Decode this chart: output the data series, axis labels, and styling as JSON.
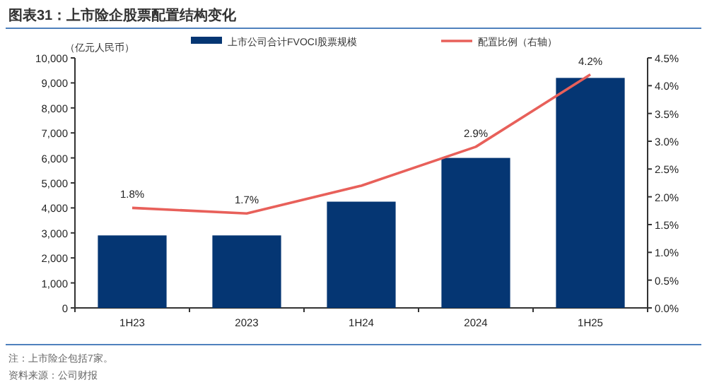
{
  "chart_data": {
    "type": "bar",
    "title": "图表31：上市险企股票配置结构变化",
    "ylabel": "（亿元人民币）",
    "categories": [
      "1H23",
      "2023",
      "1H24",
      "2024",
      "1H25"
    ],
    "series": [
      {
        "name": "上市公司合计FVOCI股票规模",
        "color": "#053673",
        "values": [
          2900,
          2900,
          4250,
          6000,
          9200
        ]
      },
      {
        "name": "配置比例（右轴）",
        "type": "line",
        "axis": "y2",
        "color": "#e8605a",
        "values": [
          1.8,
          1.7,
          2.2,
          2.9,
          4.2
        ],
        "value_labels": [
          "1.8%",
          "1.7%",
          null,
          "2.9%",
          "4.2%"
        ]
      }
    ],
    "ylim": [
      0,
      10000
    ],
    "yticks": [
      0,
      {
        "value": 1000,
        "label": "1,000"
      },
      {
        "value": 2000,
        "label": "2,000"
      },
      {
        "value": 3000,
        "label": "3,000"
      },
      {
        "value": 4000,
        "label": "4,000"
      },
      {
        "value": 5000,
        "label": "5,000"
      },
      {
        "value": 6000,
        "label": "6,000"
      },
      {
        "value": 7000,
        "label": "7,000"
      },
      {
        "value": 8000,
        "label": "8,000"
      },
      {
        "value": 9000,
        "label": "9,000"
      },
      {
        "value": 10000,
        "label": "10,000"
      }
    ],
    "y2lim": [
      0,
      4.5
    ],
    "y2ticks": [
      {
        "value": 0,
        "label": "0.0%"
      },
      {
        "value": 0.5,
        "label": "0.5%"
      },
      {
        "value": 1,
        "label": "1.0%"
      },
      {
        "value": 1.5,
        "label": "1.5%"
      },
      {
        "value": 2,
        "label": "2.0%"
      },
      {
        "value": 2.5,
        "label": "2.5%"
      },
      {
        "value": 3,
        "label": "3.0%"
      },
      {
        "value": 3.5,
        "label": "3.5%"
      },
      {
        "value": 4,
        "label": "4.0%"
      },
      {
        "value": 4.5,
        "label": "4.5%"
      }
    ],
    "legend": "top",
    "grid": false,
    "annotations": [
      "注：上市险企包括7家。",
      "资料来源：公司财报"
    ]
  }
}
